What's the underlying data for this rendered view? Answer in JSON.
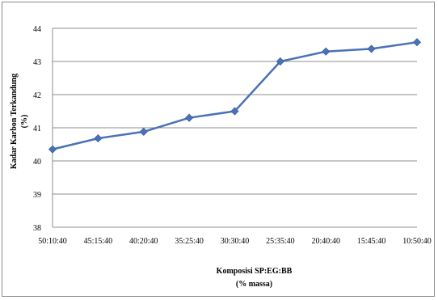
{
  "chart_data": {
    "type": "line",
    "title": "",
    "xlabel": "Komposisi SP:EG:BB",
    "xlabel_unit": "(% massa)",
    "ylabel": "Kadar Karbon Terkandung",
    "ylabel_unit": "(%)",
    "categories": [
      "50:10:40",
      "45:15:40",
      "40:20:40",
      "35:25:40",
      "30:30:40",
      "25:35:40",
      "20:40:40",
      "15:45:40",
      "10:50:40"
    ],
    "series": [
      {
        "values": [
          40.35,
          40.68,
          40.88,
          41.3,
          41.5,
          43.0,
          43.3,
          43.38,
          43.58
        ],
        "color": "#4a72b8"
      }
    ],
    "y_ticks": [
      "38",
      "39",
      "40",
      "41",
      "42",
      "43",
      "44"
    ],
    "ylim": [
      38,
      44
    ],
    "grid": true,
    "legend": "none"
  }
}
